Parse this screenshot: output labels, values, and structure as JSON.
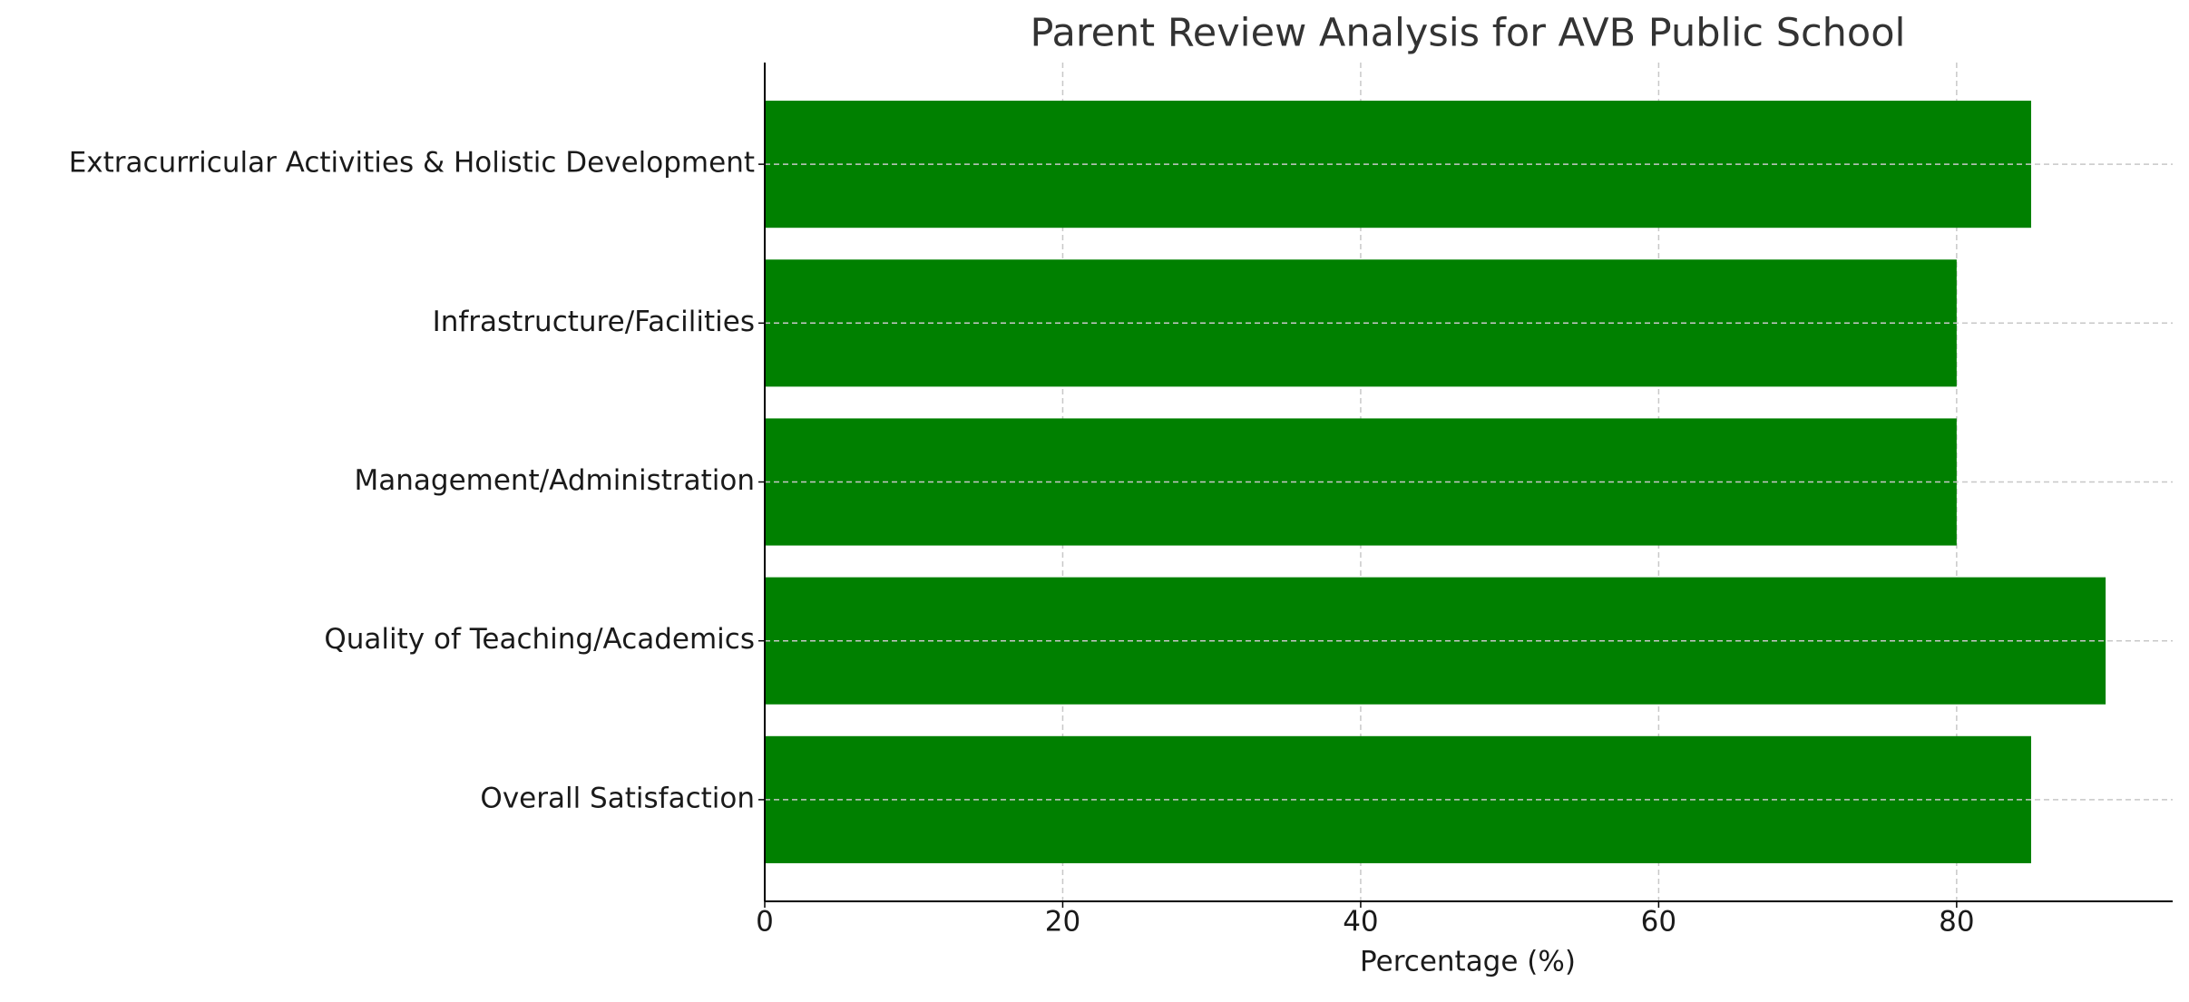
{
  "chart_data": {
    "type": "barh",
    "title": "Parent Review Analysis for AVB Public School",
    "xlabel": "Percentage (%)",
    "categories": [
      "Overall Satisfaction",
      "Quality of Teaching/Academics",
      "Management/Administration",
      "Infrastructure/Facilities",
      "Extracurricular Activities & Holistic Development"
    ],
    "values": [
      85,
      90,
      80,
      80,
      85
    ],
    "color": "#008000",
    "xlim": [
      0,
      94.5
    ],
    "xticks": [
      0,
      20,
      40,
      60,
      80
    ],
    "grid": true
  }
}
